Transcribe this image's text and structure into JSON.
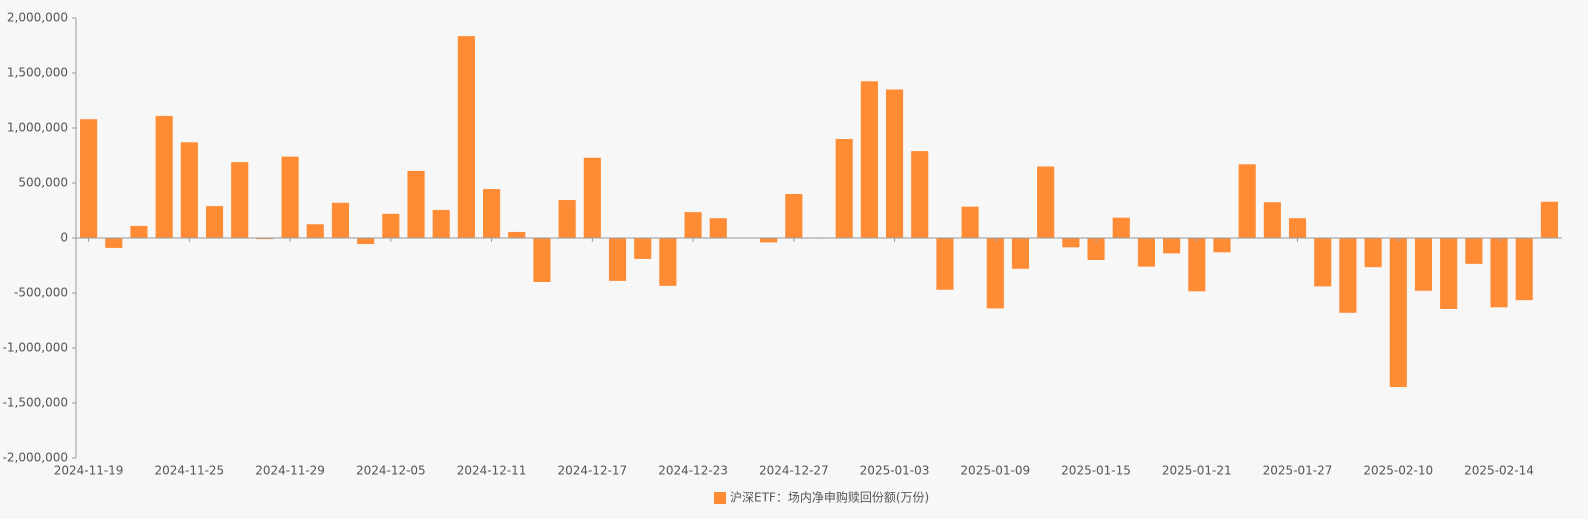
{
  "chart_data": {
    "type": "bar",
    "categories": [
      "2024-11-19",
      null,
      null,
      null,
      "2024-11-25",
      null,
      null,
      null,
      "2024-11-29",
      null,
      null,
      null,
      "2024-12-05",
      null,
      null,
      null,
      "2024-12-11",
      null,
      null,
      null,
      "2024-12-17",
      null,
      null,
      null,
      "2024-12-23",
      null,
      null,
      null,
      "2024-12-27",
      null,
      null,
      null,
      "2025-01-03",
      null,
      null,
      null,
      "2025-01-09",
      null,
      null,
      null,
      "2025-01-15",
      null,
      null,
      null,
      "2025-01-21",
      null,
      null,
      null,
      "2025-01-27",
      null,
      null,
      null,
      "2025-02-10",
      null,
      null,
      null,
      "2025-02-14",
      null,
      null
    ],
    "series": [
      {
        "name": "沪深ETF：场内净申购赎回份额(万份)",
        "color": "#ff8b35",
        "values": [
          1080000,
          -90000,
          110000,
          1110000,
          870000,
          290000,
          690000,
          -10000,
          740000,
          125000,
          320000,
          -55000,
          220000,
          610000,
          255000,
          1835000,
          445000,
          55000,
          -400000,
          345000,
          730000,
          -390000,
          -190000,
          -435000,
          235000,
          180000,
          0,
          -40000,
          400000,
          -5000,
          900000,
          1425000,
          1350000,
          790000,
          -470000,
          285000,
          -640000,
          -280000,
          650000,
          -85000,
          -200000,
          185000,
          -260000,
          -140000,
          -485000,
          -130000,
          670000,
          325000,
          180000,
          -440000,
          -680000,
          -265000,
          -1355000,
          -480000,
          -645000,
          -235000,
          -630000,
          -565000,
          330000
        ]
      }
    ],
    "ylim": [
      -2000000,
      2000000
    ],
    "yticks": [
      {
        "value": -2000000,
        "label": "-2,000,000"
      },
      {
        "value": -1500000,
        "label": "-1,500,000"
      },
      {
        "value": -1000000,
        "label": "-1,000,000"
      },
      {
        "value": -500000,
        "label": "-500,000"
      },
      0,
      {
        "value": 500000,
        "label": "500,000"
      },
      {
        "value": 1000000,
        "label": "1,000,000"
      },
      {
        "value": 1500000,
        "label": "1,500,000"
      },
      {
        "value": 2000000,
        "label": "2,000,000"
      }
    ],
    "legend": "bottom"
  }
}
